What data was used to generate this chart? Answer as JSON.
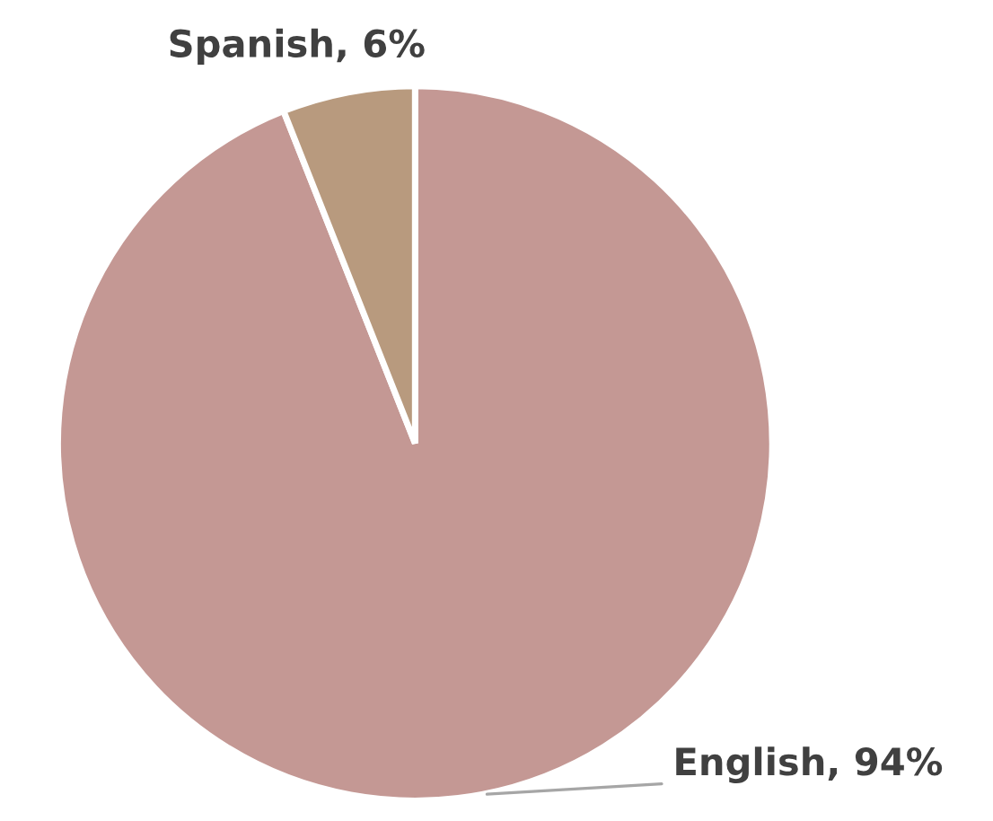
{
  "chart_data": {
    "type": "pie",
    "categories": [
      "English",
      "Spanish"
    ],
    "values": [
      94,
      6
    ],
    "value_labels": [
      "94%",
      "6%"
    ],
    "colors": [
      "#c49894",
      "#b89a7e"
    ]
  }
}
